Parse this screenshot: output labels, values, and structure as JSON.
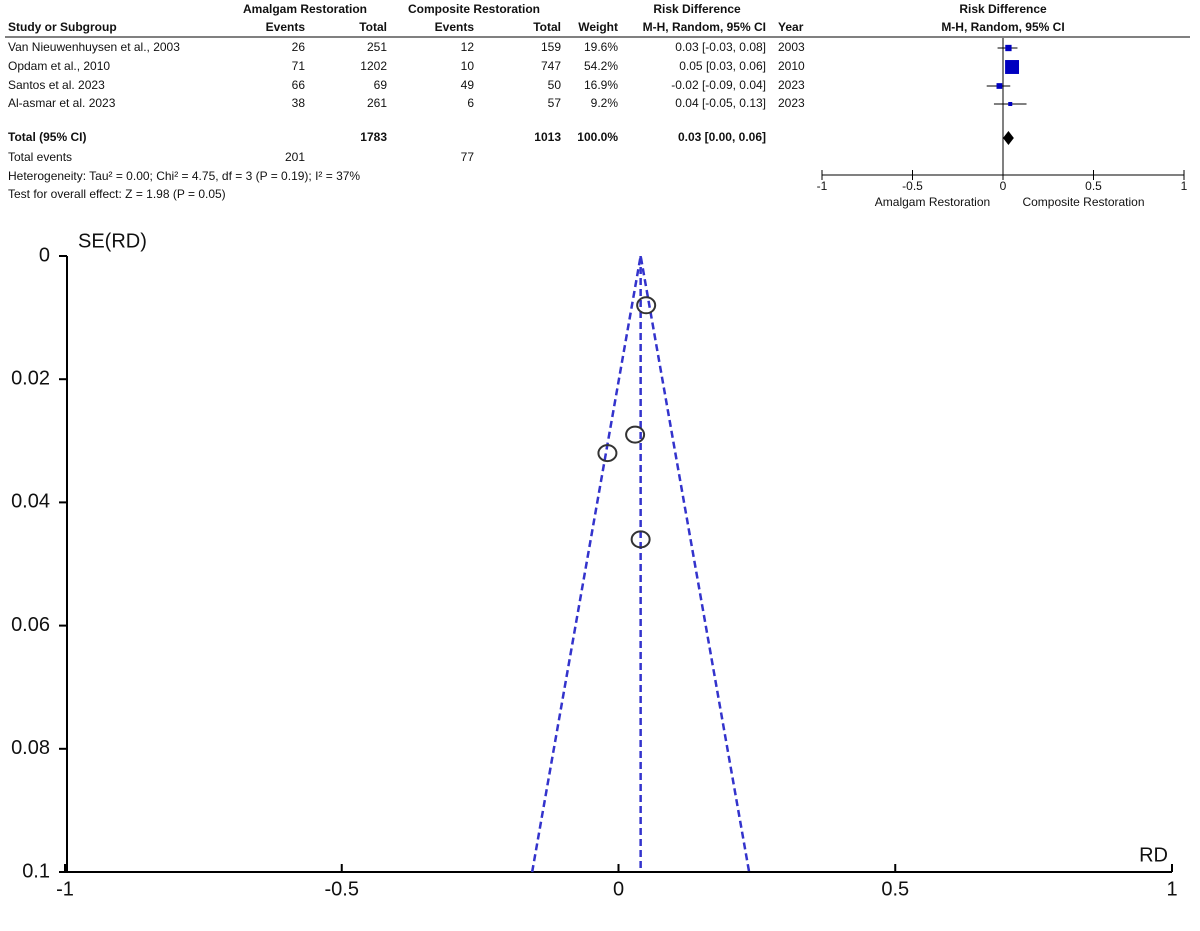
{
  "table": {
    "group_headers": [
      "Amalgam Restoration",
      "Composite Restoration",
      "Risk Difference",
      "Risk Difference"
    ],
    "column_headers": [
      "Study or Subgroup",
      "Events",
      "Total",
      "Events",
      "Total",
      "Weight",
      "M-H, Random, 95% CI",
      "Year",
      "M-H, Random, 95% CI"
    ],
    "rows": [
      [
        "Van Nieuwenhuysen et al., 2003",
        "26",
        "251",
        "12",
        "159",
        "19.6%",
        "2003"
      ],
      [
        "Opdam et al., 2010",
        "71",
        "1202",
        "10",
        "747",
        "54.2%",
        "2010"
      ],
      [
        "Santos et al. 2023",
        "66",
        "69",
        "49",
        "50",
        "16.9%",
        "2023"
      ],
      [
        "Al-asmar et al. 2023",
        "38",
        "261",
        "6",
        "57",
        "9.2%",
        "2023"
      ]
    ],
    "total_row": [
      "Total (95% CI)",
      "1783",
      "1013",
      "100.0%"
    ],
    "total_events": [
      "Total events",
      "201",
      "77"
    ],
    "heterogeneity": "Heterogeneity: Tau² = 0.00; Chi² = 4.75, df = 3 (P = 0.19); I² = 37%",
    "overall_effect": "Test for overall effect: Z = 1.98 (P = 0.05)"
  },
  "chart_data": [
    {
      "type": "forest",
      "values": [
        0.03,
        0.05,
        -0.02,
        0.04
      ],
      "ci_low": [
        -0.03,
        0.03,
        -0.09,
        -0.05
      ],
      "ci_high": [
        0.08,
        0.06,
        0.04,
        0.13
      ],
      "weights": [
        19.6,
        54.2,
        16.9,
        9.2
      ],
      "value_labels": [
        "0.03 [-0.03, 0.08]",
        "0.05 [0.03, 0.06]",
        "-0.02 [-0.09, 0.04]",
        "0.04 [-0.05, 0.13]"
      ],
      "total": {
        "value": 0.03,
        "ci_low": 0,
        "ci_high": 0.06,
        "label": "0.03 [0.00, 0.06]"
      },
      "xlim": [
        -1,
        1
      ],
      "xticks": [
        -1,
        -0.5,
        0,
        0.5,
        1
      ],
      "left_label": "Amalgam Restoration",
      "right_label": "Composite Restoration",
      "color": "#0000c0"
    },
    {
      "type": "funnel",
      "x": [
        0.03,
        0.05,
        -0.02,
        0.04
      ],
      "values": [
        0.029,
        0.008,
        0.032,
        0.046
      ],
      "pooled": 0.04,
      "xlim": [
        -1,
        1
      ],
      "xticks": [
        -1,
        -0.5,
        0,
        0.5,
        1
      ],
      "ylim": [
        0,
        0.1
      ],
      "yticks": [
        0,
        0.02,
        0.04,
        0.06,
        0.08,
        0.1
      ],
      "x_label": "RD",
      "y_label": "SE(RD)",
      "line_color": "#3333cc",
      "point_color": "#333333"
    }
  ]
}
